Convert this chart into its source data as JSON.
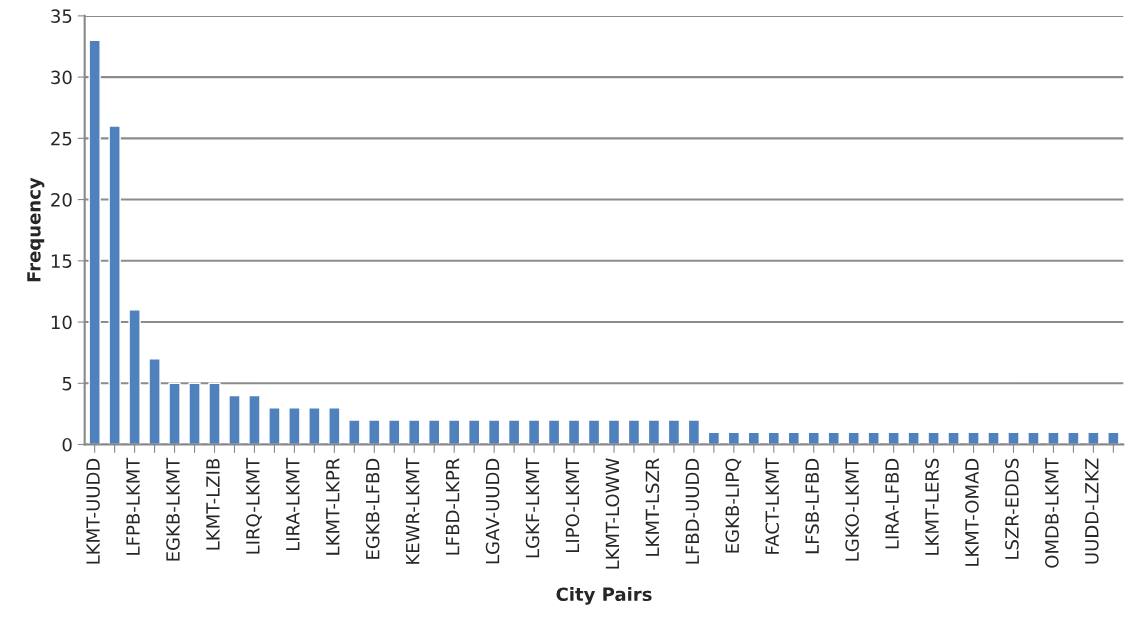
{
  "chart_data": {
    "type": "bar",
    "xlabel": "City Pairs",
    "ylabel": "Frequency",
    "categories": [
      "LKMT-UUDD",
      null,
      "LFPB-LKMT",
      null,
      "EGKB-LKMT",
      null,
      "LKMT-LZIB",
      null,
      "LIRQ-LKMT",
      null,
      "LIRA-LKMT",
      null,
      "LKMT-LKPR",
      null,
      "EGKB-LFBD",
      null,
      "KEWR-LKMT",
      null,
      "LFBD-LKPR",
      null,
      "LGAV-UUDD",
      null,
      "LGKF-LKMT",
      null,
      "LIPO-LKMT",
      null,
      "LKMT-LOWW",
      null,
      "LKMT-LSZR",
      null,
      "LFBD-UUDD",
      null,
      "EGKB-LIPQ",
      null,
      "FACT-LKMT",
      null,
      "LFSB-LFBD",
      null,
      "LGKO-LKMT",
      null,
      "LIRA-LFBD",
      null,
      "LKMT-LERS",
      null,
      "LKMT-OMAD",
      null,
      "LSZR-EDDS",
      null,
      "OMDB-LKMT",
      null,
      "UUDD-LZKZ",
      null
    ],
    "values": [
      33,
      26,
      11,
      7,
      5,
      5,
      5,
      4,
      4,
      3,
      3,
      3,
      3,
      2,
      2,
      2,
      2,
      2,
      2,
      2,
      2,
      2,
      2,
      2,
      2,
      2,
      2,
      2,
      2,
      2,
      2,
      1,
      1,
      1,
      1,
      1,
      1,
      1,
      1,
      1,
      1,
      1,
      1,
      1,
      1,
      1,
      1,
      1,
      1,
      1,
      1,
      1
    ],
    "color": "#4f81bd",
    "ylim": [
      0,
      35
    ],
    "yticks": [
      0,
      5,
      10,
      15,
      20,
      25,
      30,
      35
    ],
    "grid": "y",
    "legend": false
  }
}
